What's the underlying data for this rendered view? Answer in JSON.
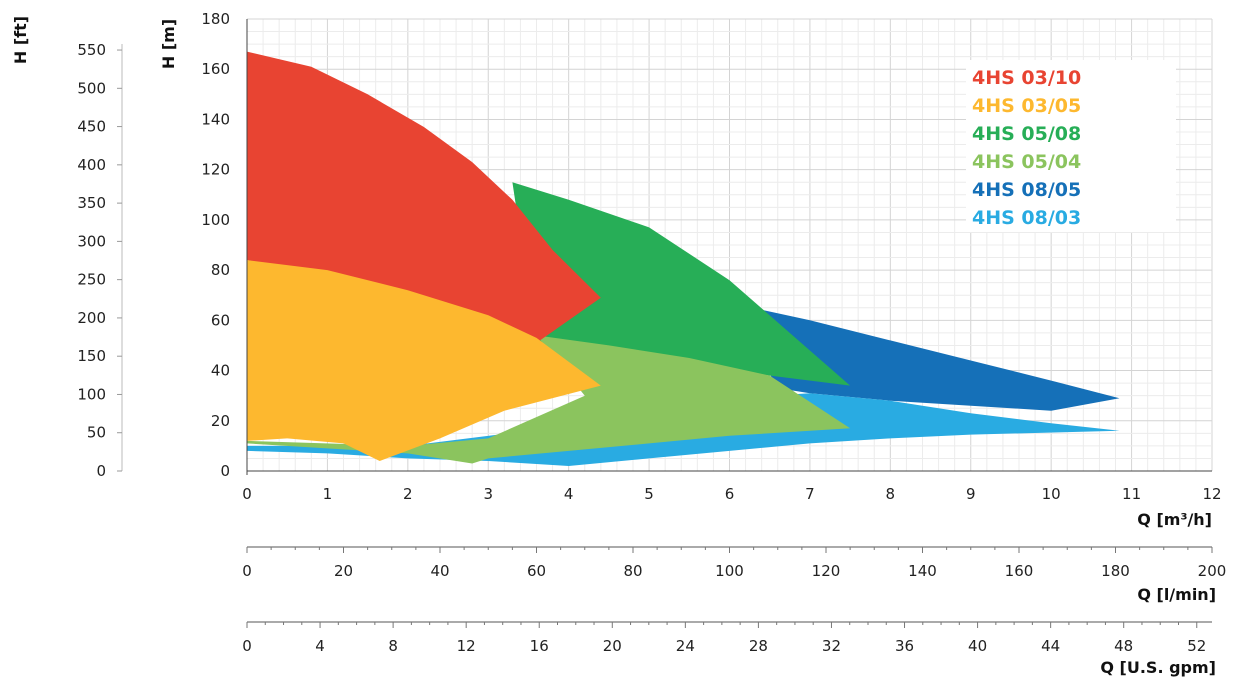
{
  "chart_data": {
    "type": "area",
    "title": "",
    "grid": true,
    "legend_position": "top-right",
    "y_label_m": "H [m]",
    "y_label_ft": "H [ft]",
    "x_label_m3h": "Q [m³/h]",
    "x_label_lmin": "Q [l/min]",
    "x_label_gpm": "Q [U.S. gpm]",
    "xlim": [
      0,
      12
    ],
    "ylim": [
      0,
      180
    ],
    "x_ticks": [
      "0",
      "1",
      "2",
      "3",
      "4",
      "5",
      "6",
      "7",
      "8",
      "9",
      "10",
      "11",
      "12"
    ],
    "y_ticks_m": [
      "0",
      "20",
      "40",
      "60",
      "80",
      "100",
      "120",
      "140",
      "160",
      "180"
    ],
    "y_ticks_ft": [
      "0",
      "50",
      "100",
      "150",
      "200",
      "250",
      "300",
      "350",
      "400",
      "450",
      "500",
      "550"
    ],
    "lmin_ticks": [
      "0",
      "20",
      "40",
      "60",
      "80",
      "100",
      "120",
      "140",
      "160",
      "180",
      "200"
    ],
    "gpm_ticks": [
      "0",
      "4",
      "8",
      "12",
      "16",
      "20",
      "24",
      "28",
      "32",
      "36",
      "40",
      "44",
      "48",
      "52"
    ],
    "series": [
      {
        "name": "4HS 08/05",
        "color": "#1570b8",
        "outline": [
          [
            6,
            67
          ],
          [
            7,
            60
          ],
          [
            8,
            52
          ],
          [
            9,
            44
          ],
          [
            10,
            36
          ],
          [
            10.85,
            29
          ],
          [
            10,
            24
          ],
          [
            9,
            26
          ],
          [
            8,
            28
          ],
          [
            7,
            31
          ],
          [
            6.6,
            33
          ]
        ]
      },
      {
        "name": "4HS 08/03",
        "color": "#29abe2",
        "outline": [
          [
            0,
            8
          ],
          [
            1,
            7
          ],
          [
            2,
            5
          ],
          [
            3,
            4
          ],
          [
            4,
            2
          ],
          [
            5,
            5
          ],
          [
            6,
            8
          ],
          [
            7,
            11
          ],
          [
            8,
            13
          ],
          [
            9,
            14.5
          ],
          [
            10.85,
            16
          ],
          [
            10,
            19
          ],
          [
            9,
            23
          ],
          [
            8,
            28
          ],
          [
            7,
            31
          ],
          [
            6.5,
            30
          ],
          [
            4,
            18
          ],
          [
            2,
            10
          ],
          [
            0,
            10
          ]
        ]
      },
      {
        "name": "4HS 05/08",
        "color": "#27ae57",
        "outline": [
          [
            3.3,
            115
          ],
          [
            4,
            108
          ],
          [
            5,
            97
          ],
          [
            6,
            76
          ],
          [
            7,
            48
          ],
          [
            7.5,
            34
          ],
          [
            5,
            44
          ],
          [
            3.6,
            51
          ]
        ]
      },
      {
        "name": "4HS 05/04",
        "color": "#8bc45e",
        "outline": [
          [
            3.6,
            54
          ],
          [
            4.5,
            50
          ],
          [
            5.5,
            45
          ],
          [
            6.5,
            38
          ],
          [
            7.5,
            17
          ],
          [
            6,
            14
          ],
          [
            5,
            11
          ],
          [
            4,
            8
          ],
          [
            3,
            5
          ],
          [
            2.8,
            3
          ],
          [
            2,
            7
          ],
          [
            0,
            11
          ],
          [
            0,
            12
          ],
          [
            2,
            10
          ],
          [
            3,
            13
          ],
          [
            4.2,
            30
          ]
        ]
      },
      {
        "name": "4HS 03/10",
        "color": "#e84432",
        "outline": [
          [
            0,
            167
          ],
          [
            0.8,
            161
          ],
          [
            1.5,
            150
          ],
          [
            2.2,
            137
          ],
          [
            2.8,
            123
          ],
          [
            3.3,
            108
          ],
          [
            3.8,
            88
          ],
          [
            4.4,
            69
          ],
          [
            3.6,
            51
          ],
          [
            2.8,
            60
          ],
          [
            1.5,
            74
          ],
          [
            0,
            84
          ]
        ]
      },
      {
        "name": "4HS 03/05",
        "color": "#fdb82f",
        "outline": [
          [
            0,
            84
          ],
          [
            1,
            80
          ],
          [
            2,
            72
          ],
          [
            3,
            62
          ],
          [
            3.6,
            53
          ],
          [
            4.4,
            34
          ],
          [
            3.2,
            24
          ],
          [
            2.4,
            13
          ],
          [
            1.65,
            4
          ],
          [
            1.2,
            11
          ],
          [
            0.5,
            13
          ],
          [
            0,
            12
          ]
        ]
      }
    ],
    "legend": [
      {
        "name": "4HS 03/10",
        "color": "#e84432"
      },
      {
        "name": "4HS 03/05",
        "color": "#fdb82f"
      },
      {
        "name": "4HS 05/08",
        "color": "#27ae57"
      },
      {
        "name": "4HS 05/04",
        "color": "#8bc45e"
      },
      {
        "name": "4HS 08/05",
        "color": "#1570b8"
      },
      {
        "name": "4HS 08/03",
        "color": "#29abe2"
      }
    ]
  }
}
